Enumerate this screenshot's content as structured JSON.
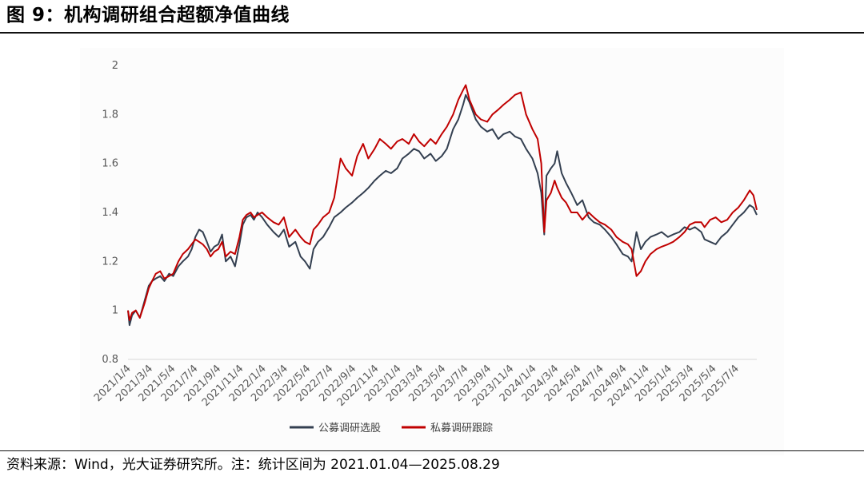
{
  "figure": {
    "title": "图 9：机构调研组合超额净值曲线",
    "source": "资料来源：Wind，光大证券研究所。注：统计区间为 2021.01.04—2025.08.29"
  },
  "chart_data": {
    "type": "line",
    "title": "",
    "xlabel": "",
    "ylabel": "",
    "ylim": [
      0.8,
      2.0
    ],
    "yticks": [
      "0.8",
      "1",
      "1.2",
      "1.4",
      "1.6",
      "1.8",
      "2"
    ],
    "x_tick_labels": [
      "2021/1/4",
      "2021/3/4",
      "2021/5/4",
      "2021/7/4",
      "2021/9/4",
      "2021/11/4",
      "2022/1/4",
      "2022/3/4",
      "2022/5/4",
      "2022/7/4",
      "2022/9/4",
      "2022/11/4",
      "2023/1/4",
      "2023/3/4",
      "2023/5/4",
      "2023/7/4",
      "2023/9/4",
      "2023/11/4",
      "2024/1/4",
      "2024/3/4",
      "2024/5/4",
      "2024/7/4",
      "2024/9/4",
      "2024/11/4",
      "2025/1/4",
      "2025/3/4",
      "2025/5/4",
      "2025/7/4"
    ],
    "grid": false,
    "legend_position": "bottom",
    "series": [
      {
        "name": "公募调研选股",
        "color": "#333f50",
        "x": [
          "2021-01-04",
          "2021-01-08",
          "2021-01-15",
          "2021-01-25",
          "2021-02-05",
          "2021-02-18",
          "2021-03-01",
          "2021-03-10",
          "2021-03-20",
          "2021-04-01",
          "2021-04-12",
          "2021-04-25",
          "2021-05-06",
          "2021-05-20",
          "2021-06-01",
          "2021-06-15",
          "2021-06-25",
          "2021-07-05",
          "2021-07-15",
          "2021-07-25",
          "2021-08-05",
          "2021-08-15",
          "2021-08-25",
          "2021-09-05",
          "2021-09-15",
          "2021-09-25",
          "2021-10-08",
          "2021-10-20",
          "2021-11-01",
          "2021-11-10",
          "2021-11-20",
          "2021-12-01",
          "2021-12-10",
          "2021-12-20",
          "2022-01-01",
          "2022-01-15",
          "2022-02-01",
          "2022-02-15",
          "2022-03-01",
          "2022-03-15",
          "2022-04-01",
          "2022-04-15",
          "2022-04-27",
          "2022-05-10",
          "2022-05-20",
          "2022-06-01",
          "2022-06-15",
          "2022-07-01",
          "2022-07-15",
          "2022-08-01",
          "2022-08-15",
          "2022-09-01",
          "2022-09-15",
          "2022-10-01",
          "2022-10-15",
          "2022-11-01",
          "2022-11-15",
          "2022-12-01",
          "2022-12-15",
          "2023-01-01",
          "2023-01-15",
          "2023-02-01",
          "2023-02-15",
          "2023-03-01",
          "2023-03-15",
          "2023-04-01",
          "2023-04-15",
          "2023-05-01",
          "2023-05-15",
          "2023-06-01",
          "2023-06-15",
          "2023-06-28",
          "2023-07-05",
          "2023-07-15",
          "2023-08-01",
          "2023-08-15",
          "2023-09-01",
          "2023-09-15",
          "2023-10-01",
          "2023-10-15",
          "2023-11-01",
          "2023-11-15",
          "2023-12-01",
          "2023-12-15",
          "2024-01-01",
          "2024-01-15",
          "2024-01-25",
          "2024-02-02",
          "2024-02-08",
          "2024-02-20",
          "2024-03-01",
          "2024-03-08",
          "2024-03-20",
          "2024-04-01",
          "2024-04-15",
          "2024-05-01",
          "2024-05-15",
          "2024-06-01",
          "2024-06-15",
          "2024-07-01",
          "2024-07-15",
          "2024-08-01",
          "2024-08-15",
          "2024-09-01",
          "2024-09-15",
          "2024-09-25",
          "2024-10-08",
          "2024-10-20",
          "2024-11-01",
          "2024-11-15",
          "2024-12-01",
          "2024-12-15",
          "2025-01-01",
          "2025-01-15",
          "2025-02-01",
          "2025-02-15",
          "2025-03-01",
          "2025-03-15",
          "2025-04-01",
          "2025-04-10",
          "2025-04-25",
          "2025-05-10",
          "2025-05-25",
          "2025-06-10",
          "2025-06-25",
          "2025-07-10",
          "2025-07-25",
          "2025-08-10",
          "2025-08-20",
          "2025-08-29"
        ],
        "values": [
          1.0,
          0.94,
          0.98,
          1.0,
          0.97,
          1.04,
          1.1,
          1.12,
          1.13,
          1.14,
          1.12,
          1.15,
          1.14,
          1.18,
          1.2,
          1.22,
          1.25,
          1.3,
          1.33,
          1.32,
          1.28,
          1.24,
          1.26,
          1.27,
          1.31,
          1.2,
          1.22,
          1.18,
          1.27,
          1.35,
          1.38,
          1.39,
          1.37,
          1.4,
          1.38,
          1.35,
          1.32,
          1.3,
          1.33,
          1.26,
          1.28,
          1.22,
          1.2,
          1.17,
          1.25,
          1.28,
          1.3,
          1.34,
          1.38,
          1.4,
          1.42,
          1.44,
          1.46,
          1.48,
          1.5,
          1.53,
          1.55,
          1.57,
          1.56,
          1.58,
          1.62,
          1.64,
          1.66,
          1.65,
          1.62,
          1.64,
          1.61,
          1.63,
          1.66,
          1.74,
          1.78,
          1.84,
          1.88,
          1.85,
          1.78,
          1.75,
          1.73,
          1.74,
          1.7,
          1.72,
          1.73,
          1.71,
          1.7,
          1.66,
          1.62,
          1.56,
          1.48,
          1.31,
          1.55,
          1.58,
          1.6,
          1.65,
          1.56,
          1.52,
          1.48,
          1.43,
          1.45,
          1.38,
          1.36,
          1.35,
          1.33,
          1.3,
          1.27,
          1.23,
          1.22,
          1.2,
          1.32,
          1.25,
          1.28,
          1.3,
          1.31,
          1.32,
          1.3,
          1.31,
          1.32,
          1.34,
          1.33,
          1.34,
          1.32,
          1.29,
          1.28,
          1.27,
          1.3,
          1.32,
          1.35,
          1.38,
          1.4,
          1.43,
          1.42,
          1.39
        ]
      },
      {
        "name": "私募调研跟踪",
        "color": "#c00000",
        "x": [
          "2021-01-04",
          "2021-01-08",
          "2021-01-15",
          "2021-01-25",
          "2021-02-05",
          "2021-02-18",
          "2021-03-01",
          "2021-03-10",
          "2021-03-20",
          "2021-04-01",
          "2021-04-12",
          "2021-04-25",
          "2021-05-06",
          "2021-05-20",
          "2021-06-01",
          "2021-06-15",
          "2021-06-25",
          "2021-07-05",
          "2021-07-15",
          "2021-07-25",
          "2021-08-05",
          "2021-08-15",
          "2021-08-25",
          "2021-09-05",
          "2021-09-15",
          "2021-09-25",
          "2021-10-08",
          "2021-10-20",
          "2021-11-01",
          "2021-11-10",
          "2021-11-20",
          "2021-12-01",
          "2021-12-10",
          "2021-12-20",
          "2022-01-01",
          "2022-01-15",
          "2022-02-01",
          "2022-02-15",
          "2022-03-01",
          "2022-03-15",
          "2022-04-01",
          "2022-04-15",
          "2022-04-27",
          "2022-05-10",
          "2022-05-20",
          "2022-06-01",
          "2022-06-15",
          "2022-07-01",
          "2022-07-15",
          "2022-08-01",
          "2022-08-15",
          "2022-09-01",
          "2022-09-15",
          "2022-10-01",
          "2022-10-15",
          "2022-11-01",
          "2022-11-15",
          "2022-12-01",
          "2022-12-15",
          "2023-01-01",
          "2023-01-15",
          "2023-02-01",
          "2023-02-15",
          "2023-03-01",
          "2023-03-15",
          "2023-04-01",
          "2023-04-15",
          "2023-05-01",
          "2023-05-15",
          "2023-06-01",
          "2023-06-15",
          "2023-06-28",
          "2023-07-05",
          "2023-07-15",
          "2023-08-01",
          "2023-08-15",
          "2023-09-01",
          "2023-09-15",
          "2023-10-01",
          "2023-10-15",
          "2023-11-01",
          "2023-11-15",
          "2023-12-01",
          "2023-12-15",
          "2024-01-01",
          "2024-01-15",
          "2024-01-25",
          "2024-02-02",
          "2024-02-08",
          "2024-02-20",
          "2024-03-01",
          "2024-03-08",
          "2024-03-20",
          "2024-04-01",
          "2024-04-15",
          "2024-05-01",
          "2024-05-15",
          "2024-06-01",
          "2024-06-15",
          "2024-07-01",
          "2024-07-15",
          "2024-08-01",
          "2024-08-15",
          "2024-09-01",
          "2024-09-15",
          "2024-09-25",
          "2024-10-08",
          "2024-10-20",
          "2024-11-01",
          "2024-11-15",
          "2024-12-01",
          "2024-12-15",
          "2025-01-01",
          "2025-01-15",
          "2025-02-01",
          "2025-02-15",
          "2025-03-01",
          "2025-03-15",
          "2025-04-01",
          "2025-04-10",
          "2025-04-25",
          "2025-05-10",
          "2025-05-25",
          "2025-06-10",
          "2025-06-25",
          "2025-07-10",
          "2025-07-25",
          "2025-08-10",
          "2025-08-20",
          "2025-08-29"
        ],
        "values": [
          1.0,
          0.96,
          0.99,
          1.0,
          0.97,
          1.03,
          1.09,
          1.12,
          1.15,
          1.16,
          1.13,
          1.14,
          1.15,
          1.2,
          1.23,
          1.25,
          1.27,
          1.29,
          1.28,
          1.27,
          1.25,
          1.22,
          1.24,
          1.25,
          1.28,
          1.22,
          1.24,
          1.23,
          1.3,
          1.37,
          1.39,
          1.4,
          1.38,
          1.39,
          1.4,
          1.38,
          1.36,
          1.35,
          1.38,
          1.3,
          1.33,
          1.3,
          1.28,
          1.27,
          1.33,
          1.35,
          1.38,
          1.4,
          1.46,
          1.62,
          1.58,
          1.55,
          1.63,
          1.68,
          1.62,
          1.66,
          1.7,
          1.68,
          1.66,
          1.69,
          1.7,
          1.68,
          1.72,
          1.69,
          1.67,
          1.7,
          1.68,
          1.72,
          1.75,
          1.8,
          1.86,
          1.9,
          1.92,
          1.86,
          1.8,
          1.78,
          1.77,
          1.8,
          1.82,
          1.84,
          1.86,
          1.88,
          1.89,
          1.8,
          1.74,
          1.7,
          1.6,
          1.32,
          1.45,
          1.48,
          1.53,
          1.5,
          1.46,
          1.44,
          1.4,
          1.4,
          1.37,
          1.4,
          1.38,
          1.36,
          1.35,
          1.33,
          1.3,
          1.28,
          1.27,
          1.25,
          1.14,
          1.16,
          1.2,
          1.23,
          1.25,
          1.26,
          1.27,
          1.28,
          1.3,
          1.32,
          1.35,
          1.36,
          1.36,
          1.34,
          1.37,
          1.38,
          1.36,
          1.37,
          1.4,
          1.42,
          1.45,
          1.49,
          1.47,
          1.41
        ]
      }
    ]
  }
}
